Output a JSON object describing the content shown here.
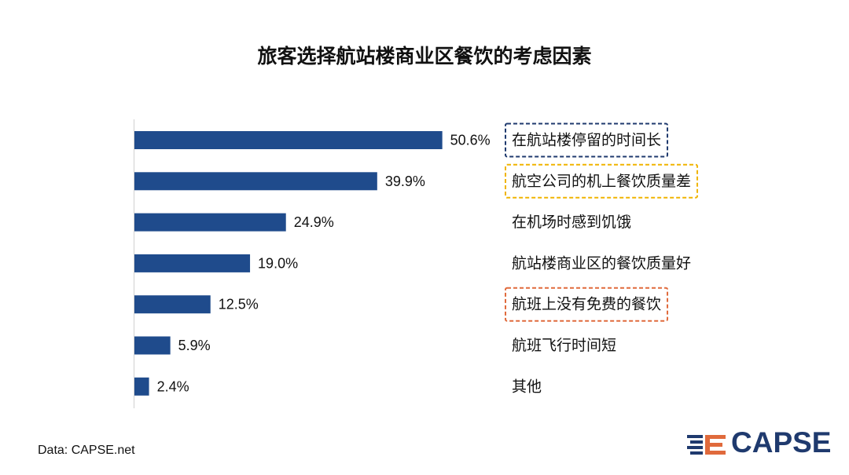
{
  "chart_data": {
    "type": "bar",
    "orientation": "horizontal",
    "title": "旅客选择航站楼商业区餐饮的考虑因素",
    "categories": [
      "在航站楼停留的时间长",
      "航空公司的机上餐饮质量差",
      "在机场时感到饥饿",
      "航站楼商业区的餐饮质量好",
      "航班上没有免费的餐饮",
      "航班飞行时间短",
      "其他"
    ],
    "values": [
      50.6,
      39.9,
      24.9,
      19.0,
      12.5,
      5.9,
      2.4
    ],
    "value_labels": [
      "50.6%",
      "39.9%",
      "24.9%",
      "19.0%",
      "12.5%",
      "5.9%",
      "2.4%"
    ],
    "highlights": [
      {
        "category_index": 0,
        "color": "#1f3a6e"
      },
      {
        "category_index": 1,
        "color": "#f0b400"
      },
      {
        "category_index": 4,
        "color": "#e06a3c"
      }
    ],
    "bar_color": "#1f4b8c",
    "xlim": [
      0,
      60
    ],
    "grid": false,
    "legend": "none"
  },
  "source": "Data: CAPSE.net",
  "logo": {
    "text": "CAPSE",
    "color": "#1f3a6e",
    "accent_color": "#e06a3c"
  }
}
